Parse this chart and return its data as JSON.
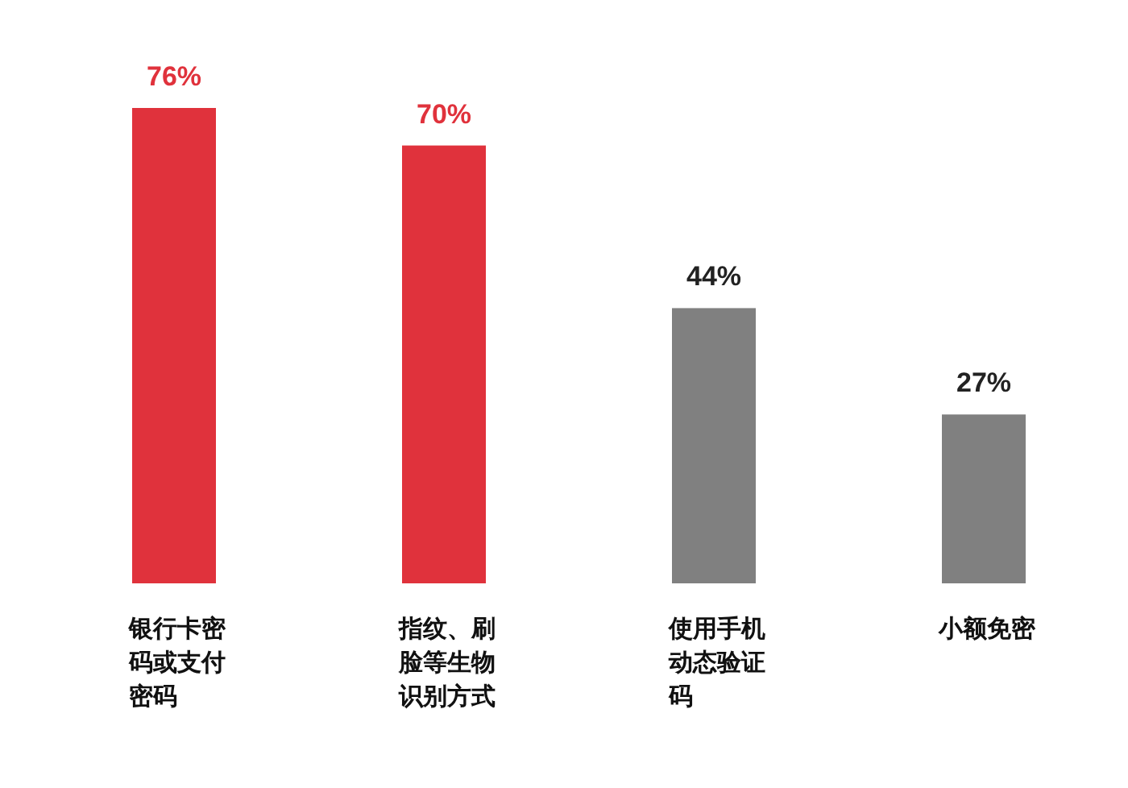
{
  "chart_data": {
    "type": "bar",
    "categories": [
      "银行卡密码或支付密码",
      "指纹、刷脸等生物识别方式",
      "使用手机动态验证码",
      "小额免密"
    ],
    "values": [
      76,
      70,
      44,
      27
    ],
    "colors": [
      "#e0323c",
      "#e0323c",
      "#808080",
      "#808080"
    ],
    "value_labels": [
      "76%",
      "70%",
      "44%",
      "27%"
    ]
  }
}
